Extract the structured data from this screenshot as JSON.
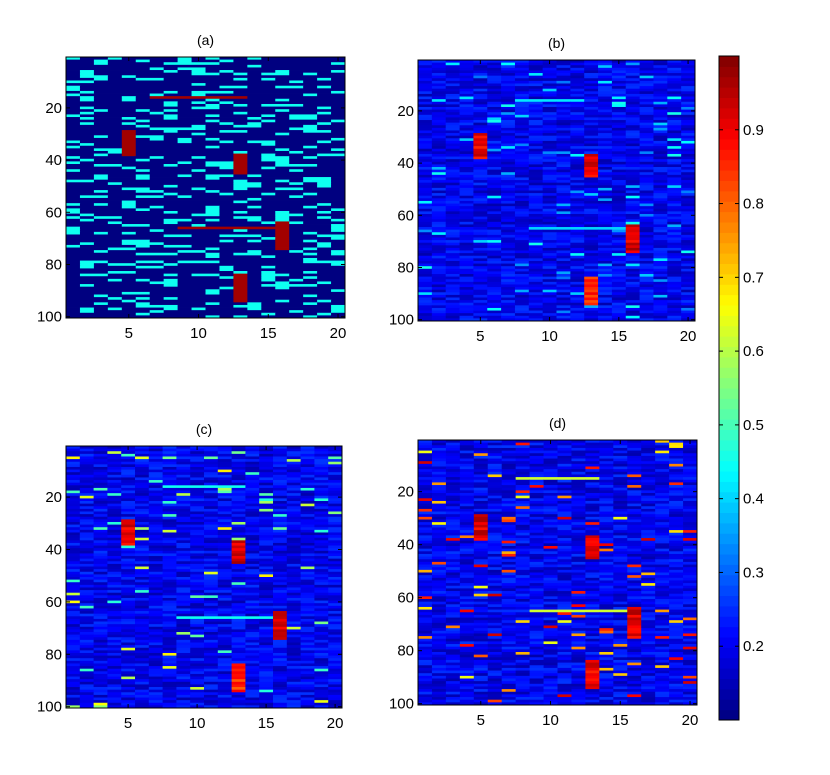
{
  "chart_data": {
    "type": "heatmap",
    "colormap": "jet",
    "clim": [
      0.1,
      1.0
    ],
    "colorbar": {
      "ticks": [
        0.2,
        0.3,
        0.4,
        0.5,
        0.6,
        0.7,
        0.8,
        0.9
      ],
      "tick_labels": [
        "0.2",
        "0.3",
        "0.4",
        "0.5",
        "0.6",
        "0.7",
        "0.8",
        "0.9"
      ],
      "placement": "right"
    },
    "panels": [
      {
        "title": "(a)",
        "columns": 20,
        "rows": 100,
        "xlim": [
          0.5,
          20.5
        ],
        "ylim": [
          0.5,
          100.5
        ],
        "xticks": [
          5,
          10,
          15,
          20
        ],
        "xtick_labels": [
          "5",
          "10",
          "15",
          "20"
        ],
        "yticks": [
          20,
          40,
          60,
          80,
          100
        ],
        "ytick_labels": [
          "20",
          "40",
          "60",
          "80",
          "100"
        ],
        "background_value": 0.1,
        "noise_value": 0.45,
        "noise_density": 0.22,
        "blocks": [
          {
            "col": 5,
            "row_start": 29,
            "row_end": 38,
            "value": 0.97
          },
          {
            "col": 13,
            "row_start": 38,
            "row_end": 45,
            "value": 0.97
          },
          {
            "col": 16,
            "row_start": 64,
            "row_end": 74,
            "value": 0.97
          },
          {
            "col": 13,
            "row_start": 84,
            "row_end": 94,
            "value": 0.97
          }
        ],
        "lines": [
          {
            "row": 16,
            "col_start": 7,
            "col_end": 13,
            "value": 0.97
          },
          {
            "row": 66,
            "col_start": 9,
            "col_end": 15,
            "value": 0.97
          }
        ]
      },
      {
        "title": "(b)",
        "columns": 20,
        "rows": 100,
        "xlim": [
          0.5,
          20.5
        ],
        "ylim": [
          0.5,
          100.5
        ],
        "xticks": [
          5,
          10,
          15,
          20
        ],
        "xtick_labels": [
          "5",
          "10",
          "15",
          "20"
        ],
        "yticks": [
          20,
          40,
          60,
          80,
          100
        ],
        "ytick_labels": [
          "20",
          "40",
          "60",
          "80",
          "100"
        ],
        "background_value": 0.2,
        "noise_value": 0.42,
        "noise_density": 0.04,
        "blocks": [
          {
            "col": 5,
            "row_start": 29,
            "row_end": 38,
            "value": 0.9
          },
          {
            "col": 13,
            "row_start": 37,
            "row_end": 45,
            "value": 0.9
          },
          {
            "col": 16,
            "row_start": 64,
            "row_end": 74,
            "value": 0.92
          },
          {
            "col": 13,
            "row_start": 84,
            "row_end": 94,
            "value": 0.85
          }
        ],
        "lines": [
          {
            "row": 16,
            "col_start": 8,
            "col_end": 12,
            "value": 0.42
          },
          {
            "row": 65,
            "col_start": 9,
            "col_end": 15,
            "value": 0.4
          }
        ]
      },
      {
        "title": "(c)",
        "columns": 20,
        "rows": 100,
        "xlim": [
          0.5,
          20.5
        ],
        "ylim": [
          0.5,
          100.5
        ],
        "xticks": [
          5,
          10,
          15,
          20
        ],
        "xtick_labels": [
          "5",
          "10",
          "15",
          "20"
        ],
        "yticks": [
          20,
          40,
          60,
          80,
          100
        ],
        "ytick_labels": [
          "20",
          "40",
          "60",
          "80",
          "100"
        ],
        "background_value": 0.2,
        "noise_value": 0.62,
        "noise_density": 0.035,
        "blocks": [
          {
            "col": 5,
            "row_start": 29,
            "row_end": 38,
            "value": 0.92
          },
          {
            "col": 13,
            "row_start": 37,
            "row_end": 45,
            "value": 0.92
          },
          {
            "col": 16,
            "row_start": 64,
            "row_end": 74,
            "value": 0.92
          },
          {
            "col": 13,
            "row_start": 84,
            "row_end": 94,
            "value": 0.85
          }
        ],
        "lines": [
          {
            "row": 16,
            "col_start": 8,
            "col_end": 13,
            "value": 0.45
          },
          {
            "row": 66,
            "col_start": 9,
            "col_end": 15,
            "value": 0.45
          }
        ]
      },
      {
        "title": "(d)",
        "columns": 20,
        "rows": 100,
        "xlim": [
          0.5,
          20.5
        ],
        "ylim": [
          0.5,
          100.5
        ],
        "xticks": [
          5,
          10,
          15,
          20
        ],
        "xtick_labels": [
          "5",
          "10",
          "15",
          "20"
        ],
        "yticks": [
          20,
          40,
          60,
          80,
          100
        ],
        "ytick_labels": [
          "20",
          "40",
          "60",
          "80",
          "100"
        ],
        "background_value": 0.2,
        "noise_value": 0.85,
        "noise_density": 0.05,
        "blocks": [
          {
            "col": 5,
            "row_start": 29,
            "row_end": 38,
            "value": 0.92
          },
          {
            "col": 13,
            "row_start": 37,
            "row_end": 45,
            "value": 0.9
          },
          {
            "col": 16,
            "row_start": 64,
            "row_end": 74,
            "value": 0.92
          },
          {
            "col": 13,
            "row_start": 84,
            "row_end": 94,
            "value": 0.9
          }
        ],
        "lines": [
          {
            "row": 15,
            "col_start": 8,
            "col_end": 13,
            "value": 0.62
          },
          {
            "row": 65,
            "col_start": 9,
            "col_end": 15,
            "value": 0.62
          }
        ]
      }
    ]
  }
}
